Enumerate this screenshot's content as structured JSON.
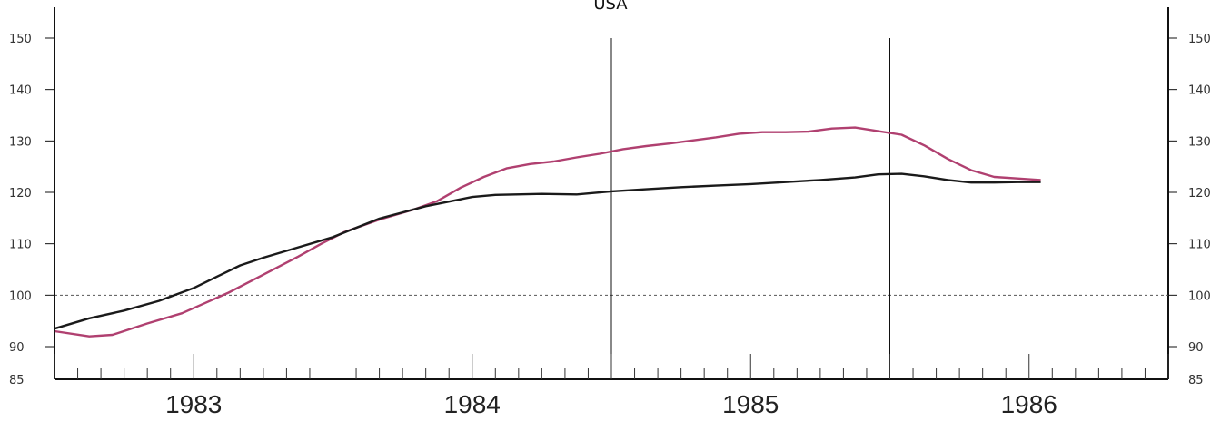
{
  "chart_data": {
    "type": "line",
    "title": "USA",
    "xlabel": "",
    "ylabel": "",
    "x_tick_labels": [
      "1983",
      "1984",
      "1985",
      "1986"
    ],
    "y_ticks": [
      85,
      90,
      100,
      110,
      120,
      130,
      140,
      150
    ],
    "ylim": [
      85,
      150
    ],
    "xlim": [
      1982.5,
      1986.5
    ],
    "reference_line": 100,
    "grid": false,
    "series": [
      {
        "color": "#b04070",
        "x": [
          1982.5,
          1982.625,
          1982.708,
          1982.833,
          1982.958,
          1983.042,
          1983.125,
          1983.25,
          1983.375,
          1983.458,
          1983.542,
          1983.667,
          1983.792,
          1983.875,
          1983.958,
          1984.042,
          1984.125,
          1984.208,
          1984.292,
          1984.375,
          1984.458,
          1984.542,
          1984.625,
          1984.708,
          1984.792,
          1984.875,
          1984.958,
          1985.042,
          1985.125,
          1985.208,
          1985.292,
          1985.375,
          1985.458,
          1985.542,
          1985.625,
          1985.708,
          1985.792,
          1985.875,
          1985.958,
          1986.042
        ],
        "values": [
          93,
          92,
          92.3,
          94.5,
          96.5,
          98.5,
          100.5,
          104,
          107.5,
          110,
          112.3,
          114.7,
          116.7,
          118.3,
          120.9,
          123,
          124.7,
          125.5,
          126,
          126.8,
          127.5,
          128.4,
          129,
          129.5,
          130.1,
          130.7,
          131.4,
          131.7,
          131.7,
          131.8,
          132.4,
          132.6,
          131.9,
          131.2,
          129.1,
          126.5,
          124.3,
          123,
          122.7,
          122.4
        ]
      },
      {
        "color": "#1a1a1a",
        "x": [
          1982.5,
          1982.625,
          1982.75,
          1982.875,
          1983.0,
          1983.083,
          1983.167,
          1983.25,
          1983.375,
          1983.5,
          1983.583,
          1983.667,
          1983.75,
          1983.833,
          1983.917,
          1984.0,
          1984.083,
          1984.25,
          1984.375,
          1984.5,
          1984.625,
          1984.75,
          1984.875,
          1985.0,
          1985.125,
          1985.25,
          1985.375,
          1985.458,
          1985.542,
          1985.625,
          1985.708,
          1985.792,
          1985.875,
          1985.958,
          1986.042
        ],
        "values": [
          93.5,
          95.5,
          97,
          98.9,
          101.4,
          103.6,
          105.8,
          107.3,
          109.3,
          111.3,
          113.1,
          114.9,
          116.1,
          117.3,
          118.2,
          119.1,
          119.5,
          119.7,
          119.6,
          120.2,
          120.6,
          121,
          121.3,
          121.6,
          122,
          122.4,
          122.9,
          123.5,
          123.6,
          123.1,
          122.4,
          121.9,
          121.9,
          122,
          122
        ]
      }
    ]
  }
}
